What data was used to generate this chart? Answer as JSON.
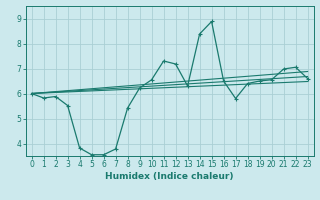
{
  "xlabel": "Humidex (Indice chaleur)",
  "background_color": "#cce9ed",
  "grid_color": "#aacfd4",
  "line_color": "#1a7a6e",
  "xlim": [
    -0.5,
    23.5
  ],
  "ylim": [
    3.5,
    9.5
  ],
  "yticks": [
    4,
    5,
    6,
    7,
    8,
    9
  ],
  "xticks": [
    0,
    1,
    2,
    3,
    4,
    5,
    6,
    7,
    8,
    9,
    10,
    11,
    12,
    13,
    14,
    15,
    16,
    17,
    18,
    19,
    20,
    21,
    22,
    23
  ],
  "main_line": {
    "x": [
      0,
      1,
      2,
      3,
      4,
      5,
      6,
      7,
      8,
      9,
      10,
      11,
      12,
      13,
      14,
      15,
      16,
      17,
      18,
      19,
      20,
      21,
      22,
      23
    ],
    "y": [
      6.0,
      5.82,
      5.88,
      5.52,
      3.82,
      3.55,
      3.55,
      3.78,
      5.42,
      6.22,
      6.55,
      7.3,
      7.18,
      6.3,
      8.38,
      8.88,
      6.5,
      5.8,
      6.4,
      6.5,
      6.55,
      6.98,
      7.05,
      6.6
    ]
  },
  "trend_lines": [
    {
      "x0": 0,
      "y0": 6.0,
      "x1": 23,
      "y1": 6.88
    },
    {
      "x0": 0,
      "y0": 6.0,
      "x1": 23,
      "y1": 6.68
    },
    {
      "x0": 0,
      "y0": 6.0,
      "x1": 23,
      "y1": 6.48
    }
  ]
}
